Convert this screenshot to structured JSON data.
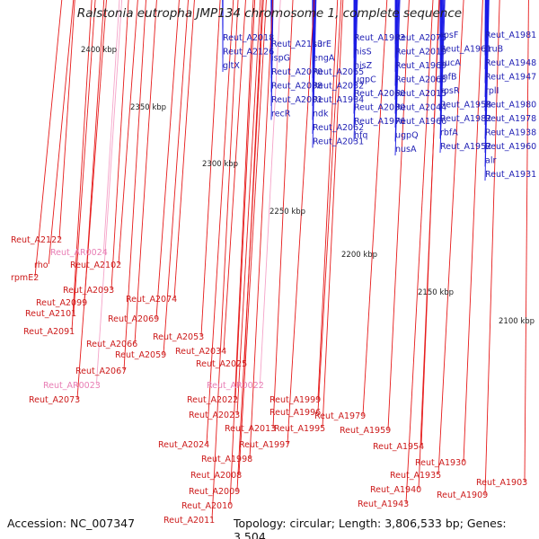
{
  "title": "Ralstonia eutropha JMP134 chromosome 1, complete sequence",
  "footer": {
    "accession": "Accession: NC_007347",
    "summary": "Topology: circular; Length: 3,806,533 bp; Genes: 3,504"
  },
  "colors": {
    "forward": "#1a1ae6",
    "reverse": "#e61a1a",
    "rna": "#f5a3c8",
    "backbone": "#8c8c8c",
    "tick": "#2a8a2a"
  },
  "scale_labels": [
    "2400 kbp",
    "2350 kbp",
    "2300 kbp",
    "2250 kbp",
    "2200 kbp",
    "2150 kbp",
    "2100 kbp"
  ],
  "forward_labels": [
    "Reut_A2018",
    "Reut_A2126",
    "gltX",
    "Reut_A2113",
    "ispG",
    "Reut_A2070",
    "Reut_A2038",
    "Reut_A2001",
    "recR",
    "surE",
    "engA",
    "Reut_A2065",
    "Reut_A2032",
    "Reut_A1984",
    "ndk",
    "Reut_A2062",
    "Reut_A2031",
    "Reut_A1983",
    "hisS",
    "hisZ",
    "ugpC",
    "Reut_A2060",
    "Reut_A2030",
    "Reut_A1976",
    "hfq",
    "Reut_A2075",
    "Reut_A2019",
    "Reut_A1969",
    "Reut_A2068",
    "Reut_A2015",
    "Reut_A2044",
    "Reut_A1966",
    "ugpQ",
    "nusA",
    "rpsF",
    "Reut_A1961",
    "sucA",
    "infB",
    "rpsR",
    "Reut_A1958",
    "Reut_A1982",
    "rbfA",
    "Reut_A1952",
    "Reut_A1981",
    "truB",
    "Reut_A1948",
    "Reut_A1947",
    "rplI",
    "Reut_A1980",
    "Reut_A1978",
    "Reut_A1938",
    "Reut_A1960",
    "alr",
    "Reut_A1931"
  ],
  "reverse_labels": [
    "Reut_A2122",
    "Reut_AR0024",
    "rho",
    "Reut_A2102",
    "rpmE2",
    "Reut_A2093",
    "Reut_A2099",
    "Reut_A2101",
    "Reut_A2074",
    "Reut_A2069",
    "Reut_A2091",
    "Reut_A2053",
    "Reut_A2066",
    "Reut_A2034",
    "Reut_A2059",
    "Reut_A2025",
    "Reut_A2067",
    "Reut_AR0022",
    "Reut_AR0023",
    "Reut_A2073",
    "Reut_A2022",
    "Reut_A1999",
    "Reut_A2023",
    "Reut_A1996",
    "Reut_A1979",
    "Reut_A2013",
    "Reut_A1995",
    "Reut_A1959",
    "Reut_A2024",
    "Reut_A1997",
    "Reut_A1954",
    "Reut_A1998",
    "Reut_A1930",
    "Reut_A2008",
    "Reut_A1935",
    "Reut_A1903",
    "Reut_A1940",
    "Reut_A2009",
    "Reut_A1909",
    "Reut_A1943",
    "Reut_A2010",
    "Reut_A2011"
  ]
}
